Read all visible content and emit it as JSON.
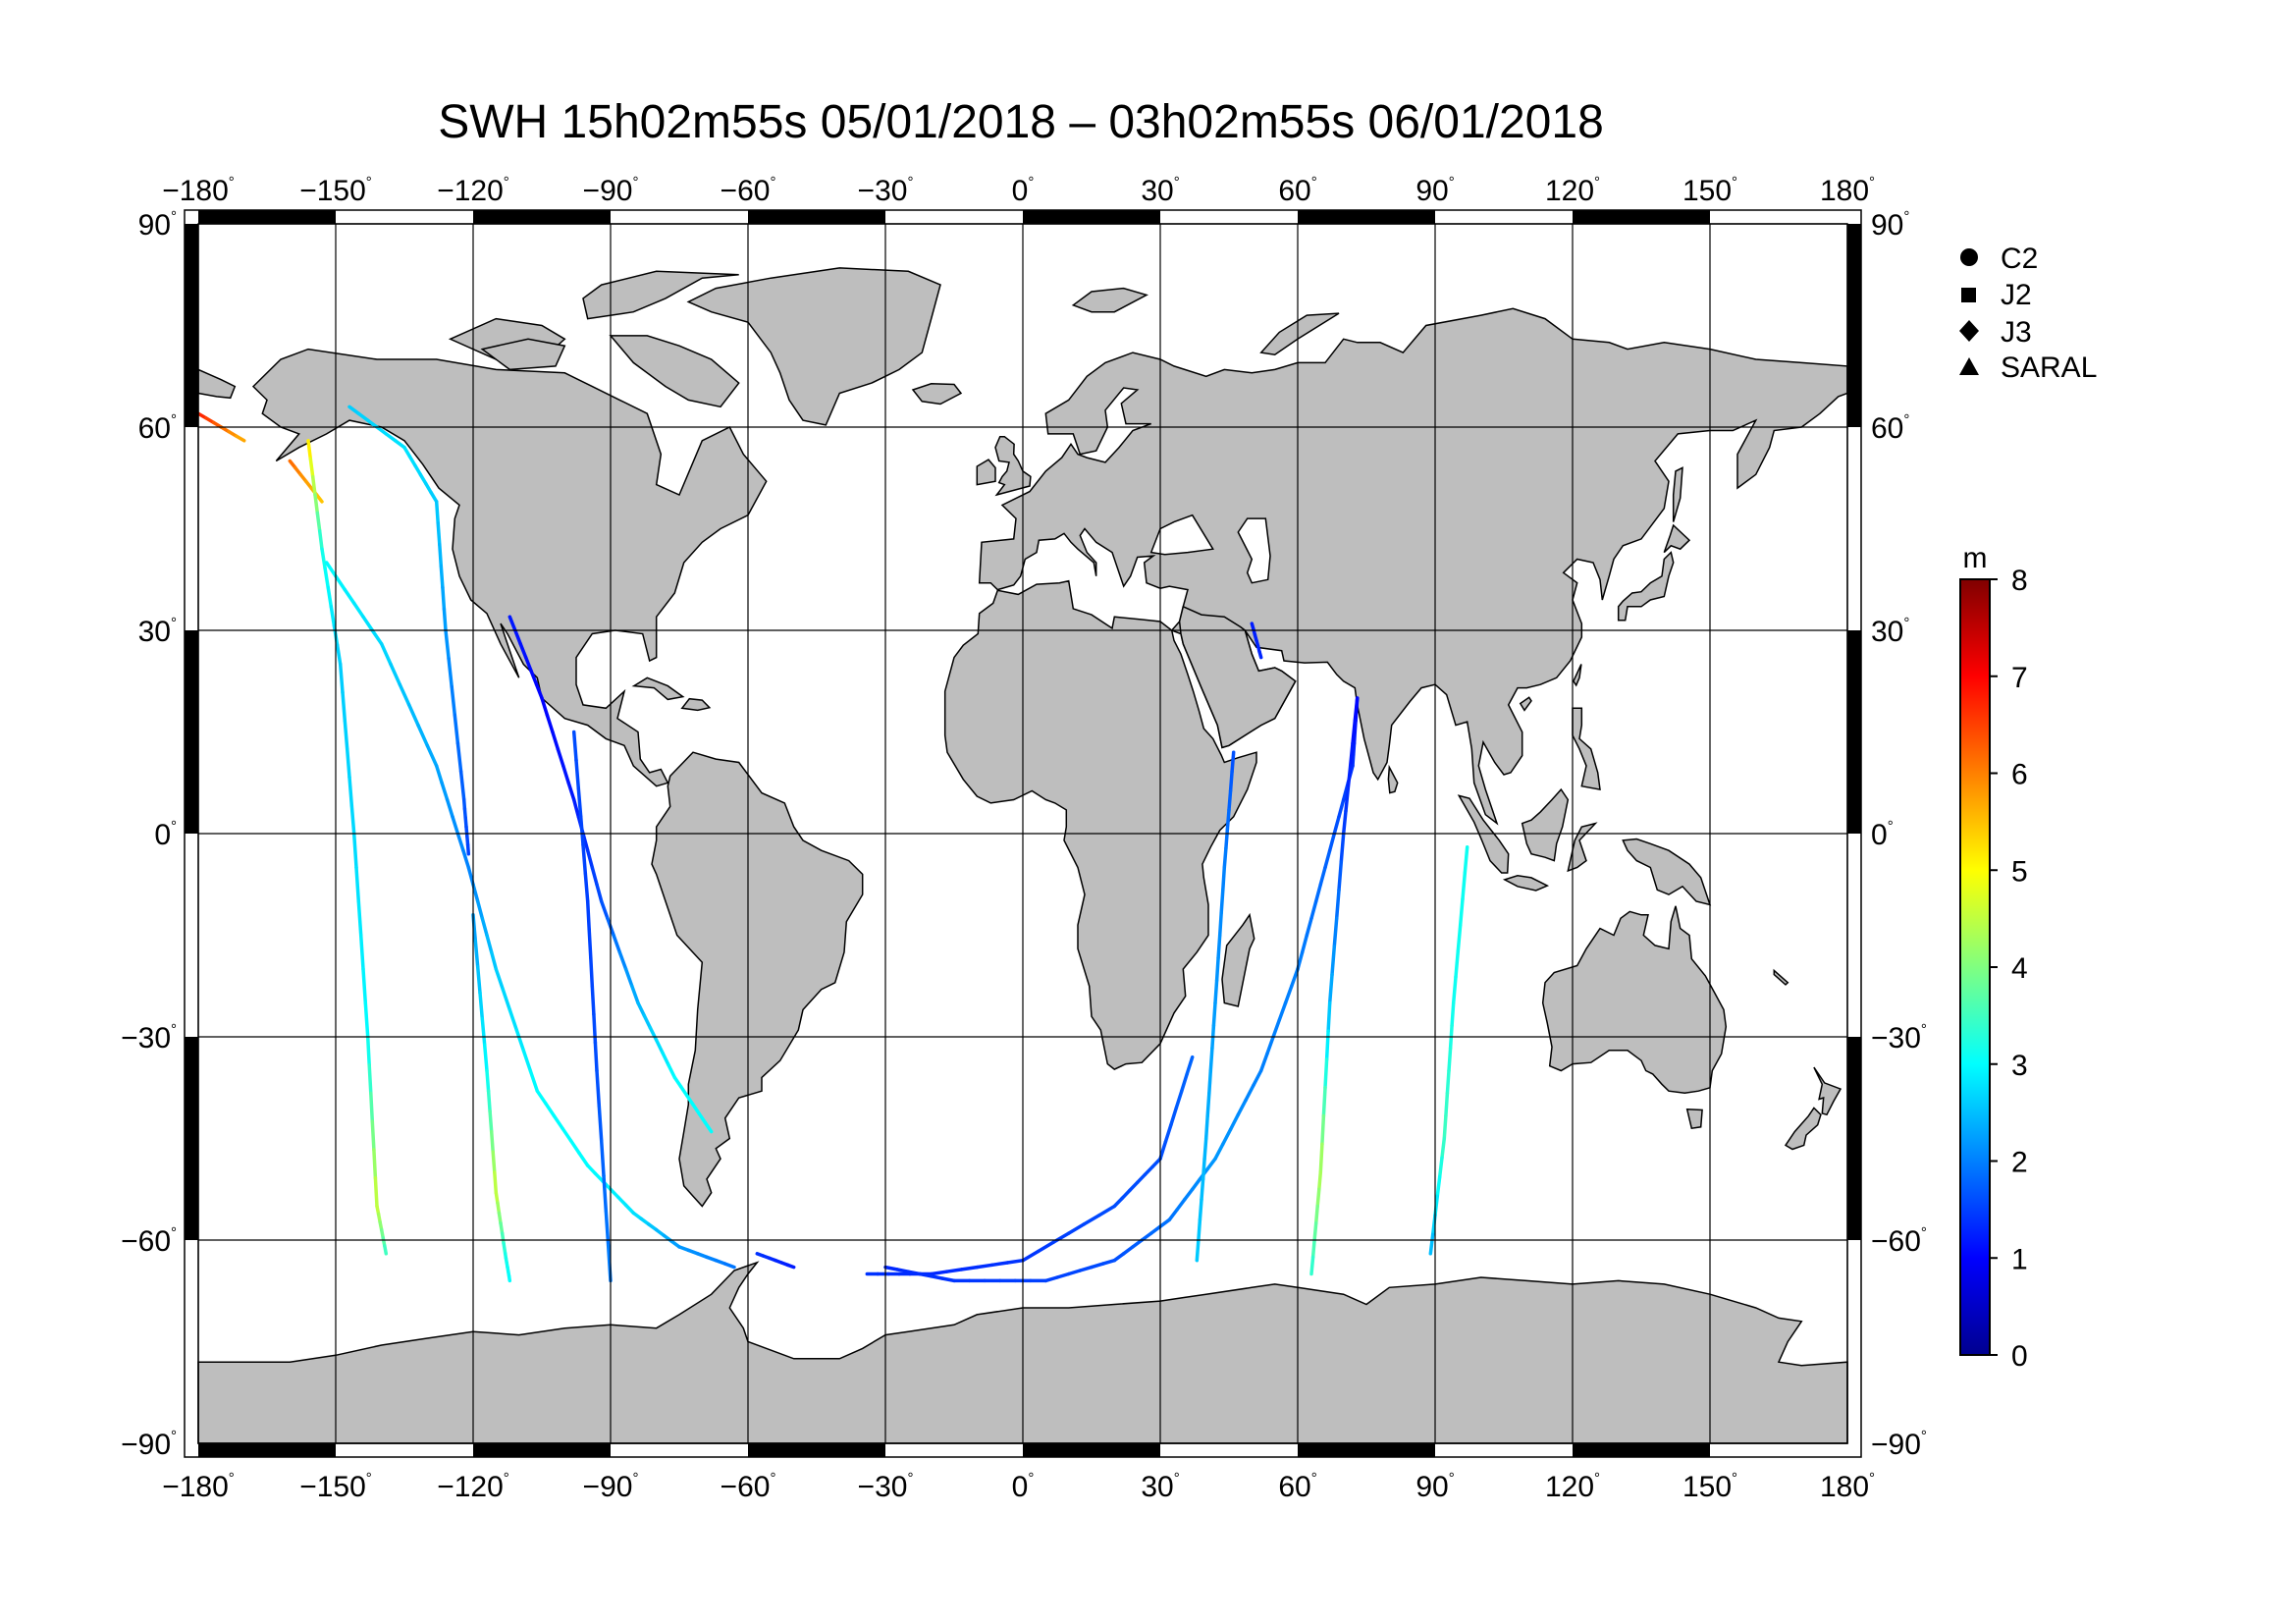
{
  "title": "SWH 15h02m55s 05/01/2018 – 03h02m55s 06/01/2018",
  "map": {
    "projection": "equirectangular",
    "lon_range": [
      -180,
      180
    ],
    "lat_range": [
      -90,
      90
    ],
    "grid": true,
    "land_color": "#bebebe",
    "ocean_color": "#ffffff",
    "lon_ticks": [
      {
        "value": -180,
        "label": "−180"
      },
      {
        "value": -150,
        "label": "−150"
      },
      {
        "value": -120,
        "label": "−120"
      },
      {
        "value": -90,
        "label": "−90"
      },
      {
        "value": -60,
        "label": "−60"
      },
      {
        "value": -30,
        "label": "−30"
      },
      {
        "value": 0,
        "label": "0"
      },
      {
        "value": 30,
        "label": "30"
      },
      {
        "value": 60,
        "label": "60"
      },
      {
        "value": 90,
        "label": "90"
      },
      {
        "value": 120,
        "label": "120"
      },
      {
        "value": 150,
        "label": "150"
      },
      {
        "value": 180,
        "label": "180"
      }
    ],
    "lat_ticks": [
      {
        "value": 90,
        "label": "90"
      },
      {
        "value": 60,
        "label": "60"
      },
      {
        "value": 30,
        "label": "30"
      },
      {
        "value": 0,
        "label": "0"
      },
      {
        "value": -30,
        "label": "−30"
      },
      {
        "value": -60,
        "label": "−60"
      },
      {
        "value": -90,
        "label": "−90"
      }
    ],
    "degree_symbol": "°"
  },
  "legend": {
    "placement": "right",
    "items": [
      {
        "label": "C2",
        "marker": "circle"
      },
      {
        "label": "J2",
        "marker": "square"
      },
      {
        "label": "J3",
        "marker": "diamond"
      },
      {
        "label": "SARAL",
        "marker": "triangle"
      }
    ]
  },
  "colorbar": {
    "unit": "m",
    "min": 0,
    "max": 8,
    "ticks": [
      "0",
      "1",
      "2",
      "3",
      "4",
      "5",
      "6",
      "7",
      "8"
    ],
    "colormap": [
      "#00008f",
      "#0000ff",
      "#0080ff",
      "#00ffff",
      "#80ff80",
      "#ffff00",
      "#ff8000",
      "#ff0000",
      "#800000"
    ]
  },
  "chart_data": {
    "type": "map",
    "variable": "SWH",
    "unit": "m",
    "tracks": [
      {
        "points": [
          [
            -180,
            62,
            6.8
          ],
          [
            -170,
            58,
            5.6
          ]
        ]
      },
      {
        "points": [
          [
            -160,
            55,
            6.2
          ],
          [
            -153,
            49,
            5.4
          ]
        ]
      },
      {
        "points": [
          [
            -156,
            58,
            5.3
          ],
          [
            -153,
            42,
            3.2
          ],
          [
            -149,
            25,
            2.6
          ],
          [
            -146,
            0,
            2.7
          ],
          [
            -143,
            -30,
            3.0
          ],
          [
            -141,
            -55,
            4.6
          ],
          [
            -139,
            -62,
            3.4
          ]
        ]
      },
      {
        "points": [
          [
            -152,
            40,
            3.0
          ],
          [
            -140,
            28,
            2.7
          ],
          [
            -128,
            10,
            2.3
          ],
          [
            -121,
            -5,
            2.0
          ],
          [
            -115,
            -20,
            2.6
          ],
          [
            -106,
            -38,
            3.0
          ],
          [
            -95,
            -49,
            3.0
          ],
          [
            -85,
            -56,
            2.8
          ],
          [
            -75,
            -61,
            2.2
          ],
          [
            -63,
            -64,
            1.9
          ]
        ]
      },
      {
        "points": [
          [
            -147,
            63,
            2.6
          ],
          [
            -135,
            57,
            2.8
          ],
          [
            -128,
            49,
            2.6
          ]
        ]
      },
      {
        "points": [
          [
            -128,
            49,
            2.6
          ],
          [
            -126,
            30,
            2.2
          ],
          [
            -122,
            5,
            1.7
          ],
          [
            -121,
            -3,
            1.5
          ]
        ]
      },
      {
        "points": [
          [
            -120,
            -12,
            2.2
          ],
          [
            -117,
            -35,
            3.0
          ],
          [
            -115,
            -53,
            4.6
          ],
          [
            -113,
            -62,
            3.2
          ],
          [
            -112,
            -66,
            3.0
          ]
        ]
      },
      {
        "points": [
          [
            -112,
            32,
            1.2
          ],
          [
            -105,
            20,
            1.0
          ],
          [
            -98,
            5,
            1.2
          ],
          [
            -92,
            -10,
            1.6
          ],
          [
            -84,
            -25,
            2.4
          ],
          [
            -76,
            -36,
            3.0
          ],
          [
            -68,
            -44,
            3.0
          ]
        ]
      },
      {
        "points": [
          [
            -98,
            15,
            1.6
          ],
          [
            -95,
            -10,
            1.5
          ],
          [
            -93,
            -35,
            1.6
          ],
          [
            -90,
            -66,
            2.0
          ]
        ]
      },
      {
        "points": [
          [
            -58,
            -62,
            1.4
          ],
          [
            -50,
            -64,
            1.2
          ]
        ]
      },
      {
        "points": [
          [
            -34,
            -65,
            1.4
          ],
          [
            -20,
            -65,
            1.3
          ],
          [
            0,
            -63,
            1.4
          ],
          [
            20,
            -55,
            1.6
          ],
          [
            30,
            -48,
            1.6
          ],
          [
            37,
            -33,
            1.8
          ]
        ]
      },
      {
        "points": [
          [
            -30,
            -64,
            1.3
          ],
          [
            -15,
            -66,
            1.4
          ],
          [
            5,
            -66,
            1.5
          ],
          [
            20,
            -63,
            1.6
          ],
          [
            32,
            -57,
            1.9
          ],
          [
            42,
            -48,
            2.2
          ],
          [
            52,
            -35,
            2.0
          ],
          [
            60,
            -20,
            2.0
          ],
          [
            66,
            -5,
            1.8
          ],
          [
            72,
            10,
            1.4
          ],
          [
            73,
            20,
            1.0
          ]
        ]
      },
      {
        "points": [
          [
            46,
            12,
            1.6
          ],
          [
            44,
            -5,
            2.0
          ],
          [
            42,
            -25,
            2.2
          ],
          [
            40,
            -45,
            2.4
          ],
          [
            38,
            -63,
            2.6
          ]
        ]
      },
      {
        "points": [
          [
            73,
            20,
            1.0
          ],
          [
            70,
            0,
            1.5
          ],
          [
            67,
            -25,
            2.4
          ],
          [
            65,
            -50,
            4.4
          ],
          [
            63,
            -65,
            3.3
          ]
        ]
      },
      {
        "points": [
          [
            97,
            -2,
            3.1
          ],
          [
            94,
            -25,
            3.1
          ],
          [
            92,
            -45,
            3.5
          ],
          [
            89,
            -62,
            2.4
          ]
        ]
      },
      {
        "points": [
          [
            50,
            31,
            1.2
          ],
          [
            52,
            26,
            1.3
          ]
        ]
      }
    ]
  }
}
